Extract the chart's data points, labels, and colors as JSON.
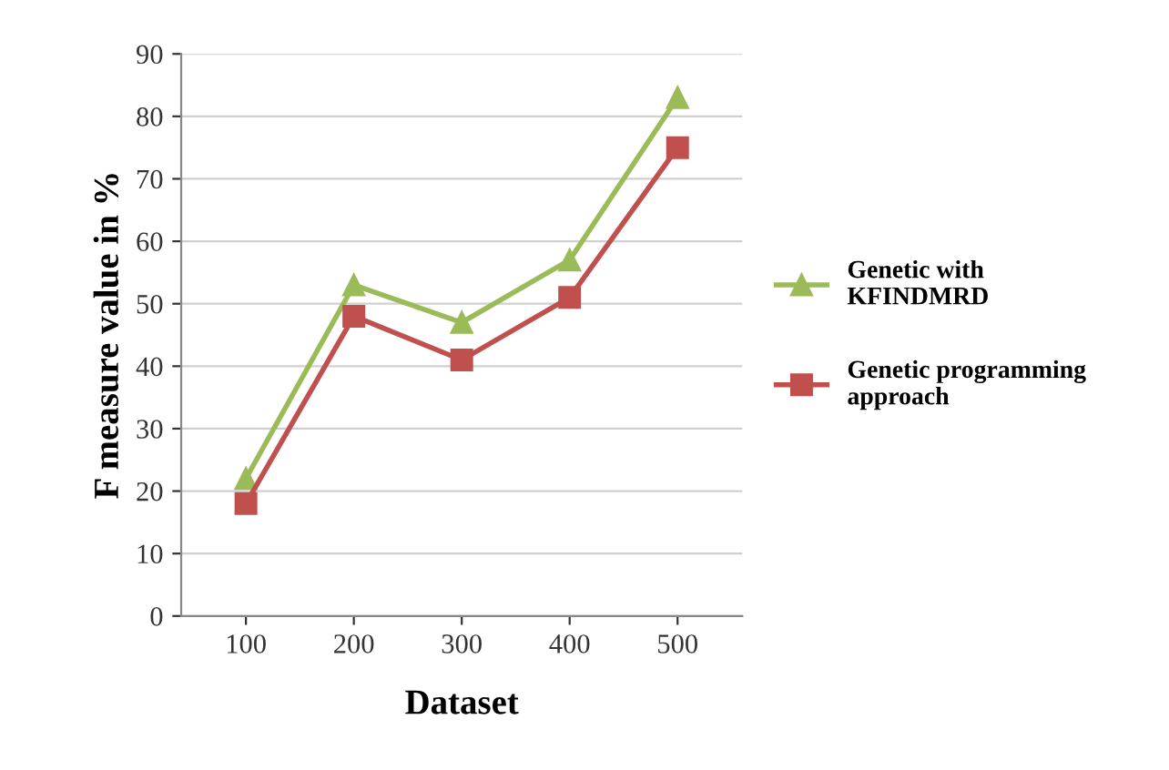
{
  "chart_data": {
    "type": "line",
    "xlabel": "Dataset",
    "ylabel": "F measure value in %",
    "categories": [
      "100",
      "200",
      "300",
      "400",
      "500"
    ],
    "series": [
      {
        "name": "Genetic with\nKFINDMRD",
        "color": "#9bbb59",
        "marker": "triangle",
        "values": [
          22,
          53,
          47,
          57,
          83
        ]
      },
      {
        "name": "Genetic programming\napproach",
        "color": "#c0504d",
        "marker": "square",
        "values": [
          18,
          48,
          41,
          51,
          75
        ]
      }
    ],
    "ylim": [
      0,
      90
    ],
    "yticks": [
      0,
      10,
      20,
      30,
      40,
      50,
      60,
      70,
      80,
      90
    ],
    "grid": "y",
    "legend": "right",
    "line_style": "solid"
  }
}
